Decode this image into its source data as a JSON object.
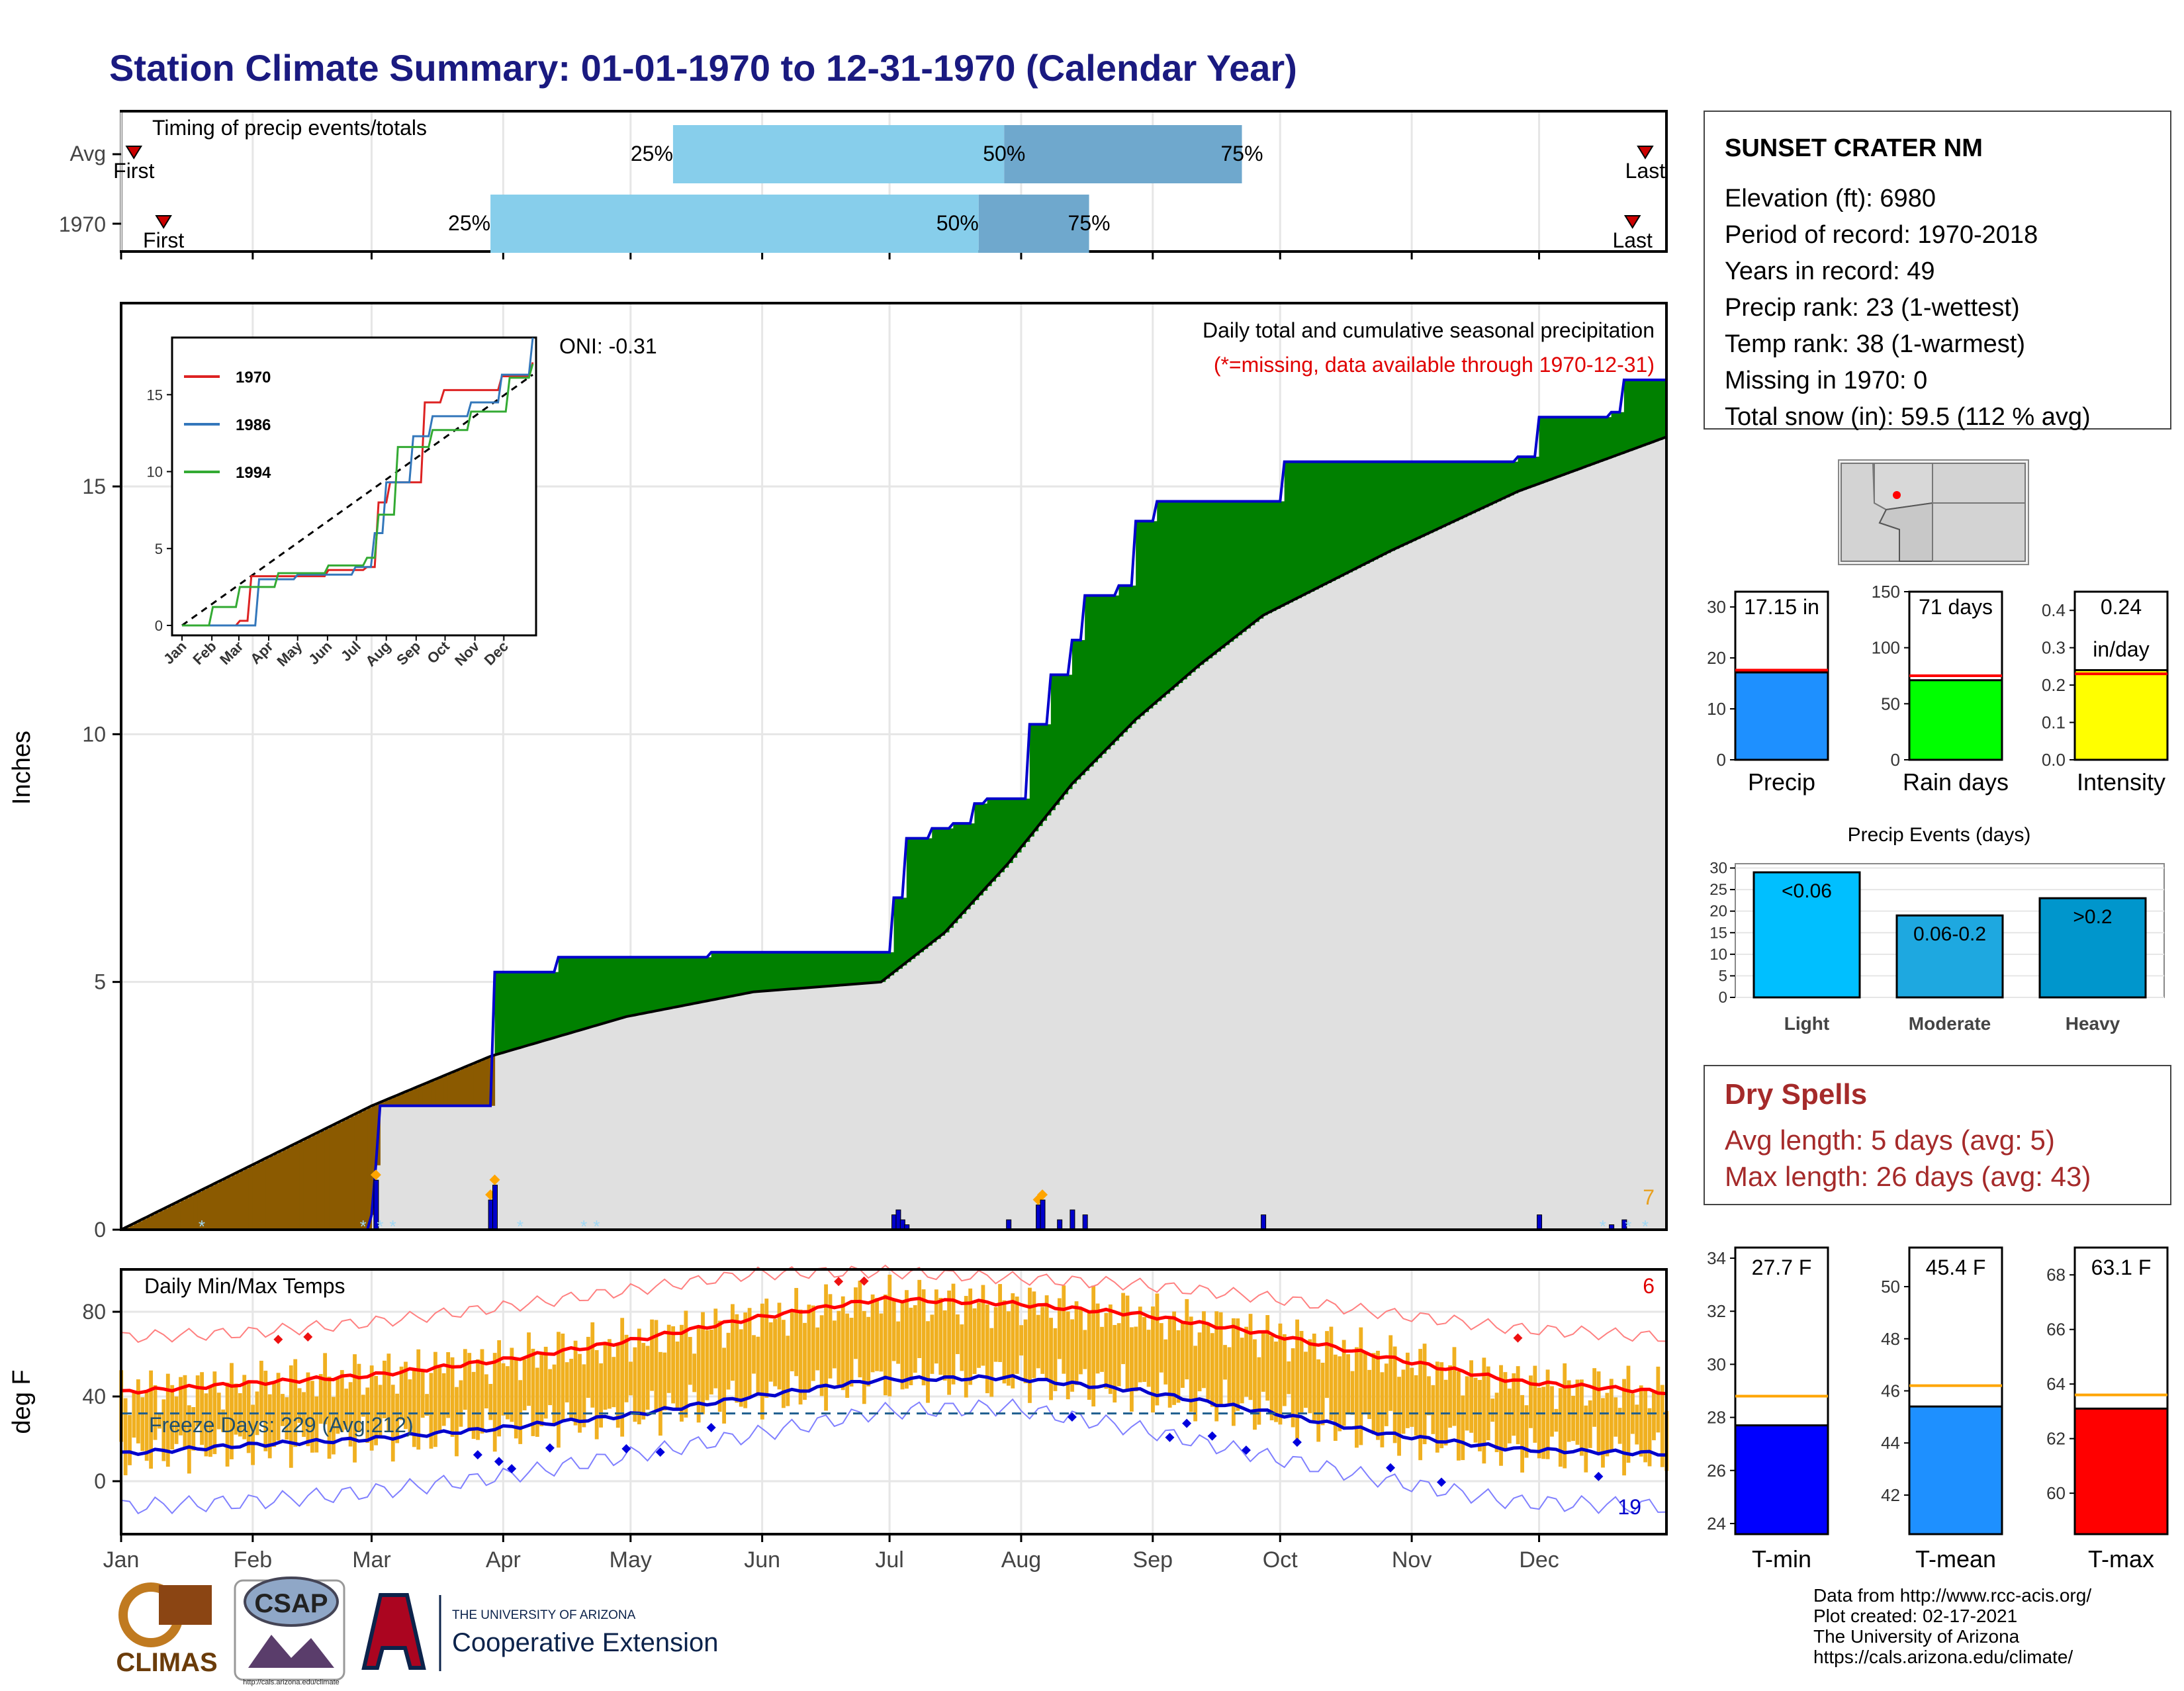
{
  "title": "Station Climate Summary: 01-01-1970 to 12-31-1970 (Calendar Year)",
  "timing_panel": {
    "heading": "Timing of precip events/totals",
    "rows": [
      {
        "label": "Avg",
        "first_label": "First",
        "last_label": "Last",
        "q25_label": "25%",
        "q50_label": "50%",
        "q75_label": "75%",
        "first_day": 4,
        "last_day": 360,
        "q25_day": 131,
        "q50_day": 209,
        "q75_day": 265
      },
      {
        "label": "1970",
        "first_label": "First",
        "last_label": "Last",
        "q25_label": "25%",
        "q50_label": "50%",
        "q75_label": "75%",
        "first_day": 11,
        "last_day": 357,
        "q25_day": 88,
        "q50_day": 203,
        "q75_day": 229
      }
    ],
    "colors": {
      "lower": "#87ceeb",
      "upper": "#6fa8cd",
      "marker": "#cc0000"
    }
  },
  "precip_panel": {
    "oni": "ONI: -0.31",
    "caption": "Daily total and cumulative seasonal precipitation",
    "missing_note": "(*=missing, data available through 1970-12-31)",
    "ylabel": "Inches",
    "y_ticks": [
      "0",
      "5",
      "10",
      "15"
    ],
    "corner_count": "7",
    "colors": {
      "above": "#008000",
      "below": "#8b5a00",
      "normal": "#e0e0e0",
      "obs_line": "#0000cc",
      "bars": "#0000cc",
      "snow": "#9fd8f5",
      "big_events": "#ffa500"
    }
  },
  "inset": {
    "legend": [
      {
        "name": "1970",
        "color": "#dd2222"
      },
      {
        "name": "1986",
        "color": "#3377bb"
      },
      {
        "name": "1994",
        "color": "#33aa33"
      }
    ],
    "y_ticks": [
      "0",
      "5",
      "10",
      "15"
    ],
    "x_ticks": [
      "Jan",
      "Feb",
      "Mar",
      "Apr",
      "May",
      "Jun",
      "Jul",
      "Aug",
      "Sep",
      "Oct",
      "Nov",
      "Dec"
    ]
  },
  "temp_panel": {
    "heading": "Daily Min/Max Temps",
    "freeze_label": "Freeze Days: 229 (Avg:212)",
    "ylabel": "deg F",
    "y_ticks": [
      "0",
      "40",
      "80"
    ],
    "record_high_count": "6",
    "record_low_count": "19",
    "colors": {
      "range": "#f0b020",
      "avg_max": "#ff0000",
      "avg_min": "#0000cc",
      "rec_max": "#ff8080",
      "rec_min": "#8080ff",
      "freeze": "#1f5f8f"
    }
  },
  "x_axis_months": [
    "Jan",
    "Feb",
    "Mar",
    "Apr",
    "May",
    "Jun",
    "Jul",
    "Aug",
    "Sep",
    "Oct",
    "Nov",
    "Dec"
  ],
  "station_box": {
    "name": "SUNSET CRATER NM",
    "lines": [
      "Elevation (ft): 6980",
      "Period of record: 1970-2018",
      "Years in record: 49",
      "Precip rank: 23 (1-wettest)",
      "Temp rank: 38 (1-warmest)",
      "Missing in 1970: 0",
      "Total snow (in): 59.5 (112 % avg)"
    ]
  },
  "mini_bars": [
    {
      "label": "Precip",
      "value_label": "17.15 in",
      "value": 17.15,
      "avg": 17.6,
      "ymax": 33,
      "ticks": [
        "0",
        "10",
        "20",
        "30"
      ],
      "tick_values": [
        0,
        10,
        20,
        30
      ],
      "color": "#1e90ff"
    },
    {
      "label": "Rain days",
      "value_label": "71 days",
      "value": 71,
      "avg": 75,
      "ymax": 150,
      "ticks": [
        "0",
        "50",
        "100",
        "150"
      ],
      "tick_values": [
        0,
        50,
        100,
        150
      ],
      "color": "#00ff00"
    },
    {
      "label": "Intensity",
      "value_label": "0.24",
      "value_label2": "in/day",
      "value": 0.24,
      "avg": 0.23,
      "ymax": 0.45,
      "ticks": [
        "0.0",
        "0.1",
        "0.2",
        "0.3",
        "0.4"
      ],
      "tick_values": [
        0,
        0.1,
        0.2,
        0.3,
        0.4
      ],
      "color": "#ffff00"
    }
  ],
  "events_chart": {
    "title": "Precip Events (days)",
    "categories": [
      "Light",
      "Moderate",
      "Heavy"
    ],
    "bar_labels": [
      "<0.06",
      "0.06-0.2",
      ">0.2"
    ],
    "values": [
      29,
      19,
      23
    ],
    "ticks": [
      "0",
      "5",
      "10",
      "15",
      "20",
      "25",
      "30"
    ],
    "colors": [
      "#00bfff",
      "#1ea8e0",
      "#0096cc"
    ]
  },
  "dry_spells": {
    "title": "Dry Spells",
    "line1": "Avg length: 5 days (avg: 5)",
    "line2": "Max length: 26 days (avg: 43)"
  },
  "temp_bars": [
    {
      "label": "T-min",
      "value_label": "27.7 F",
      "value": 27.7,
      "avg": 28.8,
      "ymin": 23.6,
      "ymax": 34.4,
      "ticks": [
        "24",
        "26",
        "28",
        "30",
        "32",
        "34"
      ],
      "tick_values": [
        24,
        26,
        28,
        30,
        32,
        34
      ],
      "color": "#0000ff"
    },
    {
      "label": "T-mean",
      "value_label": "45.4 F",
      "value": 45.4,
      "avg": 46.2,
      "ymin": 40.5,
      "ymax": 51.5,
      "ticks": [
        "42",
        "44",
        "46",
        "48",
        "50"
      ],
      "tick_values": [
        42,
        44,
        46,
        48,
        50
      ],
      "color": "#1e90ff"
    },
    {
      "label": "T-max",
      "value_label": "63.1 F",
      "value": 63.1,
      "avg": 63.6,
      "ymin": 58.5,
      "ymax": 69,
      "ticks": [
        "60",
        "62",
        "64",
        "66",
        "68"
      ],
      "tick_values": [
        60,
        62,
        64,
        66,
        68
      ],
      "color": "#ff0000"
    }
  ],
  "footer": {
    "climas": "CLIMAS",
    "csap": "CSAP",
    "csap_url": "http://cals.arizona.edu/climate",
    "ua_small": "THE UNIVERSITY OF ARIZONA",
    "ua_big": "Cooperative Extension",
    "credits": [
      "Data from http://www.rcc-acis.org/",
      "Plot created: 02-17-2021",
      "The University of Arizona",
      "https://cals.arizona.edu/climate/"
    ]
  },
  "chart_data": {
    "type": "area",
    "title": "Daily total and cumulative seasonal precipitation",
    "ylabel": "Inches",
    "ylim": [
      0,
      18.7
    ],
    "series": [
      {
        "name": "1970",
        "x": [
          1,
          20,
          60,
          61,
          62,
          88,
          89,
          104,
          140,
          180,
          183,
          186,
          192,
          197,
          202,
          205,
          210,
          215,
          220,
          225,
          228,
          236,
          240,
          245,
          258,
          270,
          275,
          330,
          335,
          352,
          355,
          365
        ],
        "values": [
          0,
          0,
          0.3,
          1.3,
          2.5,
          2.5,
          5.2,
          5.5,
          5.6,
          5.6,
          6.7,
          7.9,
          8.1,
          8.2,
          8.6,
          8.7,
          8.7,
          10.2,
          11.2,
          11.9,
          12.8,
          13.0,
          14.3,
          14.7,
          14.7,
          14.7,
          15.5,
          15.6,
          16.4,
          16.5,
          17.15,
          17.15
        ]
      },
      {
        "name": "Average",
        "x": [
          1,
          60,
          88,
          120,
          150,
          180,
          195,
          210,
          225,
          240,
          255,
          270,
          300,
          330,
          365
        ],
        "values": [
          0,
          2.5,
          3.5,
          4.3,
          4.8,
          5.0,
          6.0,
          7.4,
          9.0,
          10.3,
          11.4,
          12.4,
          13.7,
          14.9,
          16.0
        ]
      }
    ],
    "daily_totals": {
      "x": [
        61,
        88,
        89,
        183,
        184,
        185,
        186,
        210,
        217,
        218,
        222,
        225,
        228,
        270,
        335,
        352,
        355
      ],
      "values": [
        1.0,
        0.6,
        0.9,
        0.3,
        0.4,
        0.2,
        0.1,
        0.2,
        0.5,
        0.6,
        0.2,
        0.4,
        0.3,
        0.3,
        0.3,
        0.1,
        0.2
      ]
    },
    "temperature": {
      "type": "line",
      "ylabel": "deg F",
      "ylim": [
        -25,
        100
      ],
      "avg_max": {
        "x": [
          1,
          30,
          60,
          90,
          120,
          150,
          180,
          210,
          240,
          270,
          300,
          330,
          365
        ],
        "values": [
          42,
          46,
          50,
          57,
          66,
          77,
          86,
          84,
          79,
          70,
          58,
          47,
          42
        ]
      },
      "avg_min": {
        "x": [
          1,
          30,
          60,
          90,
          120,
          150,
          180,
          210,
          240,
          270,
          300,
          330,
          365
        ],
        "values": [
          13,
          17,
          20,
          25,
          31,
          40,
          48,
          49,
          43,
          33,
          22,
          15,
          13
        ]
      },
      "record_max": {
        "x": [
          1,
          30,
          60,
          90,
          120,
          150,
          180,
          210,
          240,
          270,
          300,
          330,
          365
        ],
        "values": [
          68,
          70,
          75,
          82,
          90,
          98,
          99,
          96,
          93,
          87,
          79,
          72,
          68
        ]
      },
      "record_min": {
        "x": [
          1,
          30,
          60,
          90,
          120,
          150,
          180,
          210,
          240,
          270,
          300,
          330,
          365
        ],
        "values": [
          -12,
          -10,
          -5,
          2,
          12,
          22,
          33,
          35,
          25,
          12,
          0,
          -10,
          -12
        ]
      },
      "freeze_line": 32
    }
  }
}
